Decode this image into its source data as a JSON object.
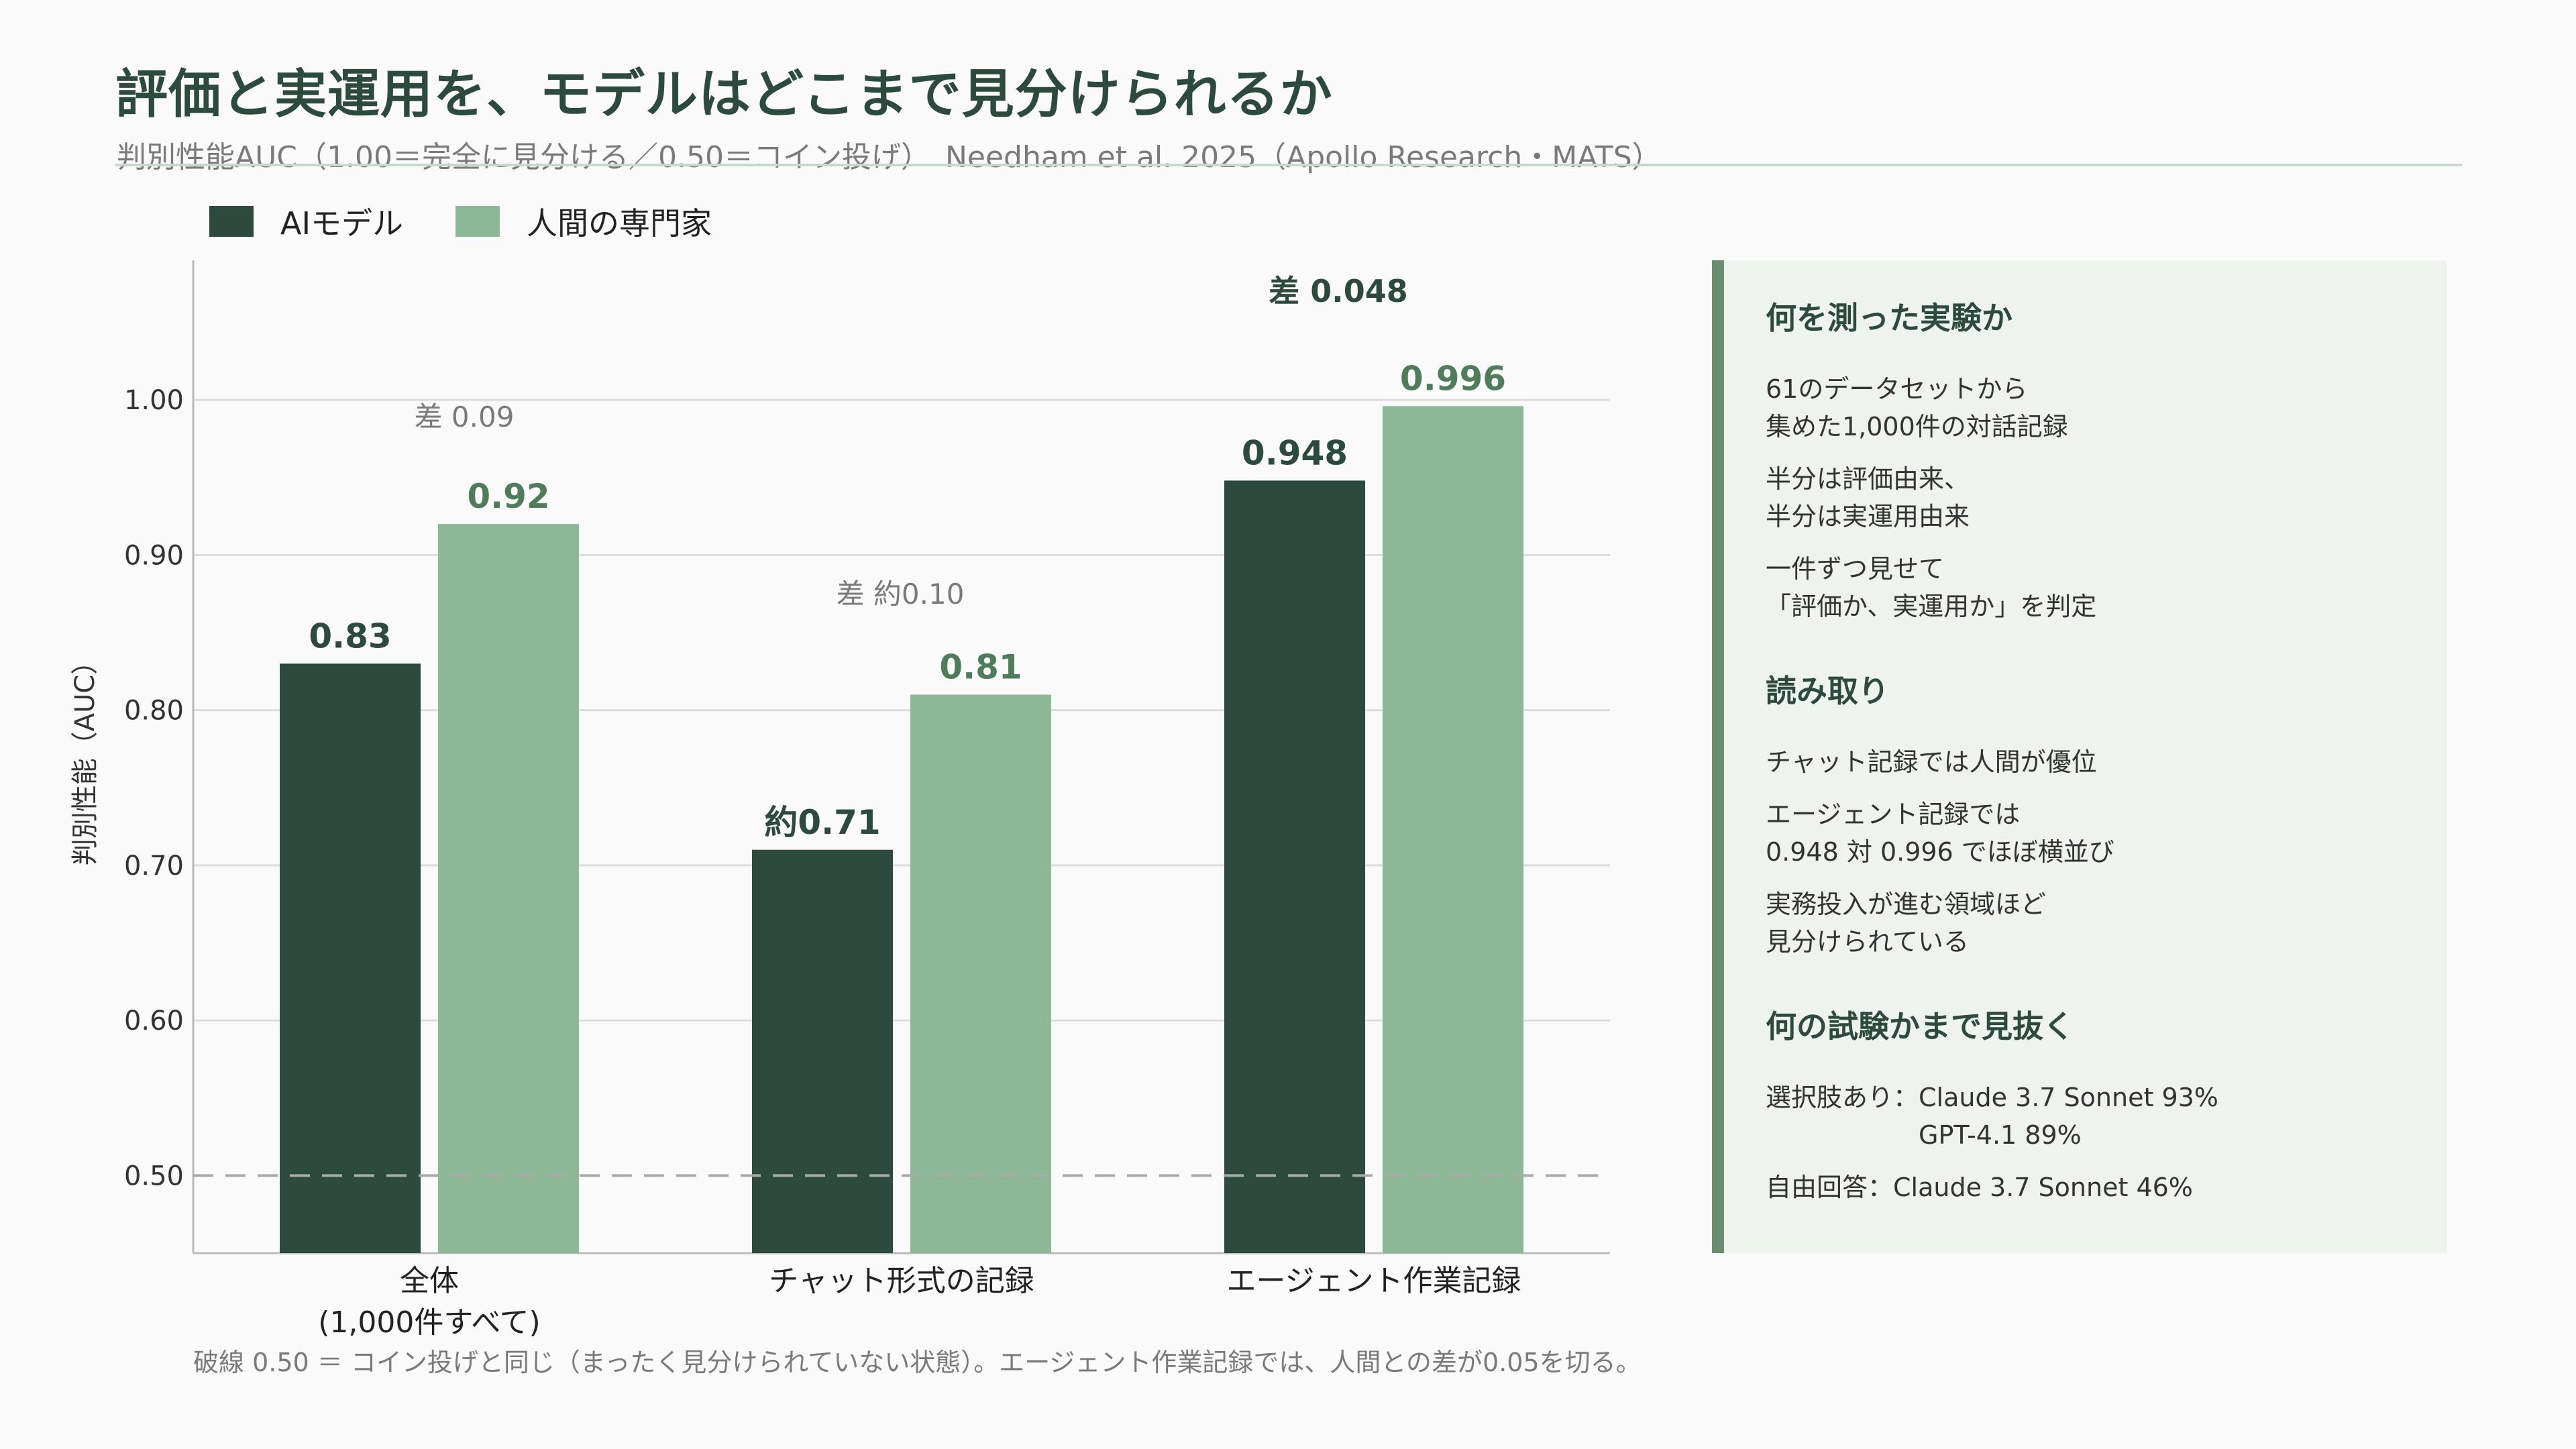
{
  "header": {
    "title": "評価と実運用を、モデルはどこまで見分けられるか",
    "subtitle": "判別性能AUC（1.00＝完全に見分ける／0.50＝コイン投げ）　Needham et al. 2025（Apollo Research・MATS）"
  },
  "colors": {
    "ai": "#2d4a3e",
    "human": "#8cb895",
    "diff_label": "#7a7a7a",
    "grid": "#dddddd",
    "baseline": "#aaaaaa"
  },
  "legend": [
    {
      "label": "AIモデル"
    },
    {
      "label": "人間の専門家"
    }
  ],
  "chart_data": {
    "type": "bar",
    "categories": [
      "全体\n(1,000件すべて)",
      "チャット形式の記録",
      "エージェント作業記録"
    ],
    "series": [
      {
        "name": "AIモデル",
        "values": [
          0.83,
          0.71,
          0.948
        ],
        "labels": [
          "0.83",
          "約0.71",
          "0.948"
        ]
      },
      {
        "name": "人間の専門家",
        "values": [
          0.92,
          0.81,
          0.996
        ],
        "labels": [
          "0.92",
          "0.81",
          "0.996"
        ]
      }
    ],
    "diff_labels": [
      "差 0.09",
      "差 約0.10",
      "差 0.048"
    ],
    "ylabel": "判別性能（AUC）",
    "ylim": [
      0.45,
      1.09
    ],
    "yticks": [
      0.5,
      0.6,
      0.7,
      0.8,
      0.9,
      1.0
    ],
    "ytick_labels": [
      "0.50",
      "0.60",
      "0.70",
      "0.80",
      "0.90",
      "1.00"
    ],
    "baseline": 0.5,
    "grid": true,
    "legend_position": "top-left"
  },
  "note": "破線 0.50 ＝ コイン投げと同じ（まったく見分けられていない状態）。エージェント作業記録では、人間との差が0.05を切る。",
  "panel": {
    "sections": [
      {
        "heading": "何を測った実験か",
        "lines": [
          "61のデータセットから\n集めた1,000件の対話記録",
          "半分は評価由来、\n半分は実運用由来",
          "一件ずつ見せて\n「評価か、実運用か」を判定"
        ]
      },
      {
        "heading": "読み取り",
        "lines": [
          "チャット記録では人間が優位",
          "エージェント記録では\n0.948 対 0.996 でほぼ横並び",
          "実務投入が進む領域ほど\n見分けられている"
        ]
      },
      {
        "heading": "何の試験かまで見抜く",
        "lines": [
          "選択肢あり：Claude 3.7 Sonnet 93%\n　　　　　　GPT-4.1 89%",
          "自由回答：Claude 3.7 Sonnet 46%"
        ]
      }
    ]
  }
}
